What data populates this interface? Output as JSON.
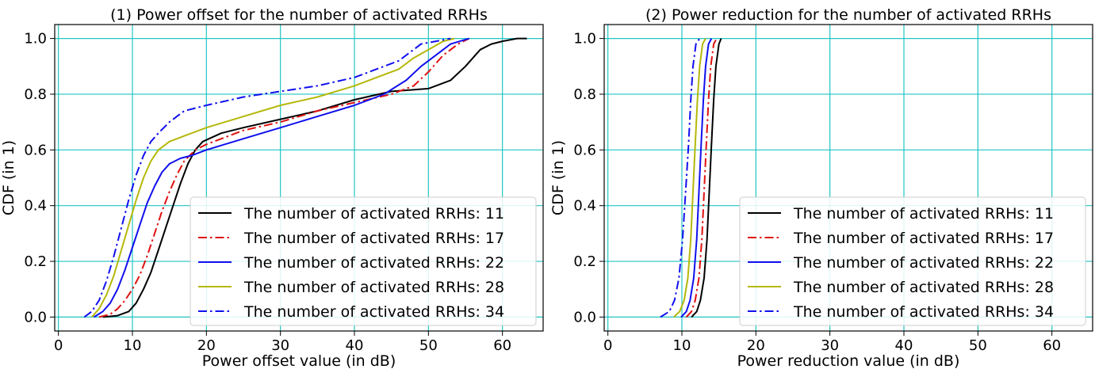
{
  "chart_data": [
    {
      "type": "line",
      "title": "(1) Power offset for the number of activated RRHs",
      "xlabel": "Power offset value (in dB)",
      "ylabel": "CDF (in 1)",
      "xlim": [
        -0.5,
        65.5
      ],
      "ylim": [
        -0.05,
        1.05
      ],
      "xticks": [
        0,
        10,
        20,
        30,
        40,
        50,
        60
      ],
      "yticks": [
        0.0,
        0.2,
        0.4,
        0.6,
        0.8,
        1.0
      ],
      "ytick_labels": [
        "0.0",
        "0.2",
        "0.4",
        "0.6",
        "0.8",
        "1.0"
      ],
      "grid": true,
      "legend_position": "lower right",
      "series": [
        {
          "name": "The number of activated RRHs: 11",
          "color": "#000000",
          "style": "solid",
          "x": [
            6.0,
            8.0,
            9.5,
            10.5,
            11.5,
            12.5,
            13.5,
            14.5,
            15.5,
            16.5,
            17.5,
            18.5,
            19.5,
            22,
            25,
            30,
            35,
            40,
            45,
            50,
            53,
            55,
            57,
            58.5,
            60,
            62,
            63.3
          ],
          "y": [
            0.0,
            0.005,
            0.02,
            0.05,
            0.1,
            0.16,
            0.24,
            0.32,
            0.4,
            0.48,
            0.55,
            0.6,
            0.63,
            0.66,
            0.68,
            0.71,
            0.74,
            0.78,
            0.81,
            0.82,
            0.85,
            0.9,
            0.96,
            0.98,
            0.99,
            1.0,
            1.0
          ]
        },
        {
          "name": "The number of activated RRHs: 17",
          "color": "#e01010",
          "style": "dashdot",
          "x": [
            5.5,
            7.0,
            8.0,
            9.0,
            10.0,
            11.0,
            12.0,
            13.0,
            14.0,
            15.0,
            16.0,
            17.0,
            18.5,
            20,
            25,
            30,
            35,
            40,
            45,
            48,
            50,
            52,
            54,
            55.5
          ],
          "y": [
            0.0,
            0.01,
            0.03,
            0.06,
            0.1,
            0.15,
            0.22,
            0.3,
            0.38,
            0.45,
            0.51,
            0.56,
            0.6,
            0.62,
            0.67,
            0.7,
            0.74,
            0.77,
            0.8,
            0.83,
            0.88,
            0.94,
            0.98,
            1.0
          ]
        },
        {
          "name": "The number of activated RRHs: 22",
          "color": "#1010ee",
          "style": "solid",
          "x": [
            4.8,
            6.0,
            7.0,
            8.0,
            9.0,
            10.0,
            11.0,
            12.0,
            13.0,
            14.0,
            15.0,
            16.5,
            18,
            20,
            25,
            30,
            35,
            40,
            44,
            47,
            49,
            51,
            53,
            55.5
          ],
          "y": [
            0.0,
            0.02,
            0.05,
            0.1,
            0.17,
            0.25,
            0.33,
            0.41,
            0.47,
            0.52,
            0.55,
            0.57,
            0.58,
            0.6,
            0.64,
            0.68,
            0.72,
            0.76,
            0.8,
            0.85,
            0.9,
            0.94,
            0.98,
            1.0
          ]
        },
        {
          "name": "The number of activated RRHs: 28",
          "color": "#b5b80a",
          "style": "solid",
          "x": [
            4.5,
            5.5,
            6.5,
            7.5,
            8.5,
            9.5,
            10.5,
            11.5,
            12.5,
            13.5,
            15,
            17,
            20,
            25,
            30,
            35,
            40,
            43,
            46,
            48,
            50,
            52,
            53.5
          ],
          "y": [
            0.0,
            0.03,
            0.08,
            0.15,
            0.24,
            0.33,
            0.42,
            0.5,
            0.56,
            0.6,
            0.63,
            0.65,
            0.68,
            0.72,
            0.76,
            0.79,
            0.83,
            0.86,
            0.89,
            0.93,
            0.96,
            0.99,
            1.0
          ]
        },
        {
          "name": "The number of activated RRHs: 34",
          "color": "#1010ee",
          "style": "dashdot",
          "x": [
            3.5,
            4.5,
            5.5,
            6.5,
            7.5,
            8.5,
            9.5,
            10.5,
            11.5,
            12.5,
            13.5,
            15,
            17,
            20,
            25,
            30,
            35,
            40,
            42,
            44,
            46,
            47.5,
            49,
            51,
            53
          ],
          "y": [
            0.0,
            0.02,
            0.06,
            0.13,
            0.22,
            0.32,
            0.42,
            0.51,
            0.58,
            0.63,
            0.66,
            0.7,
            0.74,
            0.76,
            0.79,
            0.81,
            0.83,
            0.86,
            0.88,
            0.9,
            0.92,
            0.95,
            0.98,
            0.99,
            1.0
          ]
        }
      ]
    },
    {
      "type": "line",
      "title": "(2) Power reduction for the number of activated RRHs",
      "xlabel": "Power reduction value (in dB)",
      "ylabel": "CDF (in 1)",
      "xlim": [
        -0.5,
        65.5
      ],
      "ylim": [
        -0.05,
        1.05
      ],
      "xticks": [
        0,
        10,
        20,
        30,
        40,
        50,
        60
      ],
      "yticks": [
        0.0,
        0.2,
        0.4,
        0.6,
        0.8,
        1.0
      ],
      "ytick_labels": [
        "0.0",
        "0.2",
        "0.4",
        "0.6",
        "0.8",
        "1.0"
      ],
      "grid": true,
      "legend_position": "lower right",
      "series": [
        {
          "name": "The number of activated RRHs: 11",
          "color": "#000000",
          "style": "solid",
          "x": [
            11.3,
            12.0,
            12.5,
            13.0,
            13.4,
            13.7,
            14.0,
            14.3,
            14.6,
            15.0,
            15.3
          ],
          "y": [
            0.0,
            0.02,
            0.06,
            0.14,
            0.28,
            0.45,
            0.62,
            0.78,
            0.9,
            0.98,
            1.0
          ]
        },
        {
          "name": "The number of activated RRHs: 17",
          "color": "#e01010",
          "style": "dashdot",
          "x": [
            10.6,
            11.3,
            11.8,
            12.3,
            12.7,
            13.0,
            13.3,
            13.6,
            13.9,
            14.3,
            14.7
          ],
          "y": [
            0.0,
            0.02,
            0.06,
            0.14,
            0.28,
            0.45,
            0.62,
            0.78,
            0.9,
            0.98,
            1.0
          ]
        },
        {
          "name": "The number of activated RRHs: 22",
          "color": "#1010ee",
          "style": "solid",
          "x": [
            9.9,
            10.6,
            11.1,
            11.6,
            12.0,
            12.3,
            12.6,
            12.9,
            13.2,
            13.6,
            14.0
          ],
          "y": [
            0.0,
            0.02,
            0.06,
            0.14,
            0.28,
            0.45,
            0.62,
            0.78,
            0.9,
            0.98,
            1.0
          ]
        },
        {
          "name": "The number of activated RRHs: 28",
          "color": "#b5b80a",
          "style": "solid",
          "x": [
            8.9,
            9.7,
            10.3,
            10.8,
            11.2,
            11.5,
            11.8,
            12.1,
            12.4,
            12.8,
            13.2
          ],
          "y": [
            0.0,
            0.02,
            0.06,
            0.14,
            0.28,
            0.45,
            0.62,
            0.78,
            0.9,
            0.98,
            1.0
          ]
        },
        {
          "name": "The number of activated RRHs: 34",
          "color": "#1010ee",
          "style": "dashdot",
          "x": [
            7.1,
            8.3,
            9.0,
            9.6,
            10.1,
            10.5,
            10.9,
            11.2,
            11.5,
            11.9,
            12.4
          ],
          "y": [
            0.0,
            0.02,
            0.06,
            0.14,
            0.28,
            0.45,
            0.62,
            0.78,
            0.9,
            0.98,
            1.0
          ]
        }
      ]
    }
  ]
}
